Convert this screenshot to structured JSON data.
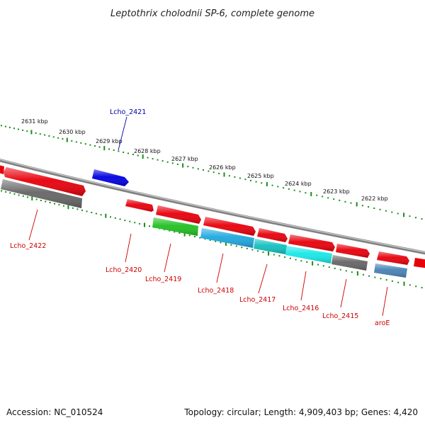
{
  "title": "Leptothrix cholodnii SP-6, complete genome",
  "footer": {
    "accession": "Accession: NC_010524",
    "summary": "Topology: circular; Length: 4,909,403 bp; Genes: 4,420"
  },
  "ticks": [
    "2631 kbp",
    "2630 kbp",
    "2629 kbp",
    "2628 kbp",
    "2627 kbp",
    "2626 kbp",
    "2625 kbp",
    "2624 kbp",
    "2623 kbp",
    "2622 kbp"
  ],
  "genes": {
    "lcho_2421": "Lcho_2421",
    "lcho_2422": "Lcho_2422",
    "lcho_2420": "Lcho_2420",
    "lcho_2419": "Lcho_2419",
    "lcho_2418": "Lcho_2418",
    "lcho_2417": "Lcho_2417",
    "lcho_2416": "Lcho_2416",
    "lcho_2415": "Lcho_2415",
    "aroE": "aroE"
  },
  "colors": {
    "red": "#e8000b",
    "blue": "#0000e0",
    "green": "#22c022",
    "sky": "#1fa8e0",
    "teal": "#12c0c0",
    "cyan": "#18e8e8",
    "gray": "#666666",
    "steel": "#4682b4",
    "tick_green": "#1a8c1a",
    "label_red": "#cc0000",
    "label_blue": "#0000aa"
  }
}
